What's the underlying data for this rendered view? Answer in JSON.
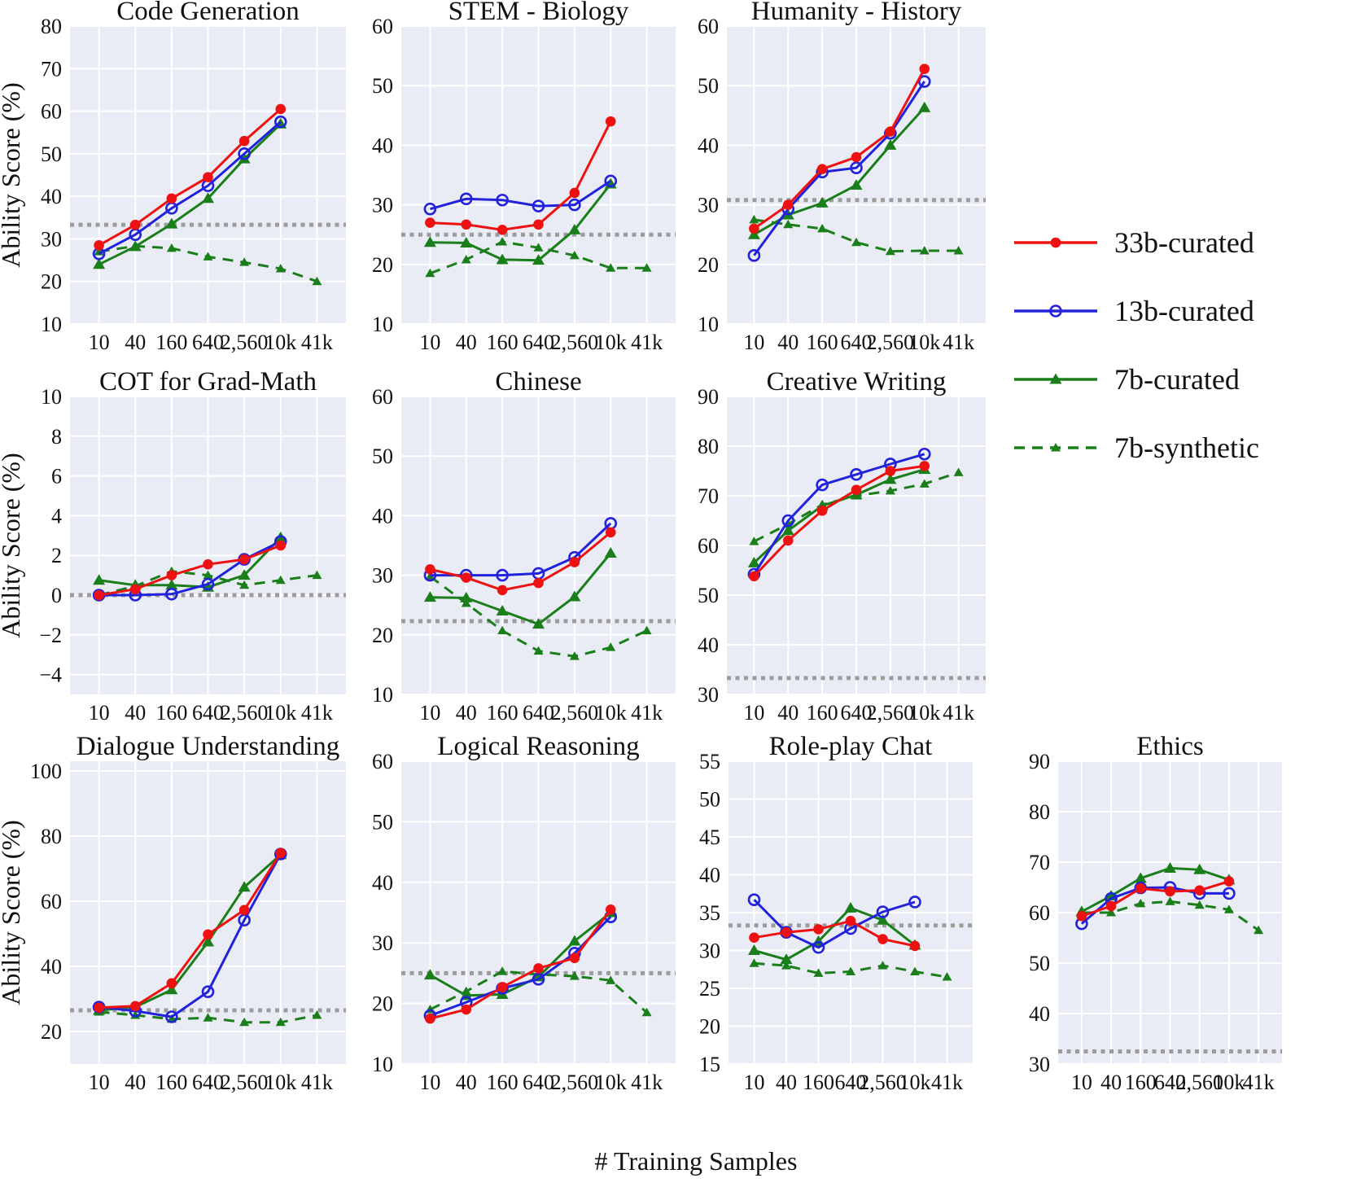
{
  "page": {
    "xlabel": "# Training Samples",
    "ylabel": "Ability Score (%)"
  },
  "theme": {
    "plot_bg": "#e9ecf4",
    "grid": "#ffffff",
    "baseline": "#9c9c9c",
    "red": "#ee1111",
    "blue": "#2222dd",
    "green": "#1a7f1a"
  },
  "legend": {
    "items": [
      {
        "label": "33b-curated",
        "color": "#ee1111",
        "marker": "circle-filled",
        "dash": "solid"
      },
      {
        "label": "13b-curated",
        "color": "#2222dd",
        "marker": "circle-open",
        "dash": "solid"
      },
      {
        "label": "7b-curated",
        "color": "#1a7f1a",
        "marker": "triangle-filled",
        "dash": "solid"
      },
      {
        "label": "7b-synthetic",
        "color": "#1a7f1a",
        "marker": "triangle-filled",
        "dash": "dashed"
      }
    ]
  },
  "chart_data": [
    {
      "type": "line",
      "title": "Code Generation",
      "categories": [
        "10",
        "40",
        "160",
        "640",
        "2,560",
        "10k",
        "41k"
      ],
      "ylim": [
        10,
        80
      ],
      "yticks": [
        10,
        20,
        30,
        40,
        50,
        60,
        70,
        80
      ],
      "baseline": 33.3,
      "series": [
        {
          "name": "33b-curated",
          "values": [
            28.5,
            33.3,
            39.5,
            44.5,
            53,
            60.5,
            null
          ]
        },
        {
          "name": "13b-curated",
          "values": [
            26.5,
            31,
            37.2,
            42.5,
            50,
            57.5,
            null
          ]
        },
        {
          "name": "7b-curated",
          "values": [
            24,
            28.2,
            33.5,
            39.5,
            48.8,
            57,
            null
          ]
        },
        {
          "name": "7b-synthetic",
          "values": [
            27,
            28.3,
            27.8,
            25.8,
            24.5,
            23,
            20
          ]
        }
      ]
    },
    {
      "type": "line",
      "title": "STEM - Biology",
      "categories": [
        "10",
        "40",
        "160",
        "640",
        "2,560",
        "10k",
        "41k"
      ],
      "ylim": [
        10,
        60
      ],
      "yticks": [
        10,
        20,
        30,
        40,
        50,
        60
      ],
      "baseline": 25,
      "series": [
        {
          "name": "33b-curated",
          "values": [
            27,
            26.7,
            25.8,
            26.7,
            32,
            44,
            null
          ]
        },
        {
          "name": "13b-curated",
          "values": [
            29.3,
            31,
            30.8,
            29.8,
            30,
            34,
            null
          ]
        },
        {
          "name": "7b-curated",
          "values": [
            23.7,
            23.6,
            20.8,
            20.7,
            25.8,
            33.5,
            null
          ]
        },
        {
          "name": "7b-synthetic",
          "values": [
            18.5,
            20.8,
            23.8,
            22.8,
            21.5,
            19.4,
            19.4
          ]
        }
      ]
    },
    {
      "type": "line",
      "title": "Humanity - History",
      "categories": [
        "10",
        "40",
        "160",
        "640",
        "2,560",
        "10k",
        "41k"
      ],
      "ylim": [
        10,
        60
      ],
      "yticks": [
        10,
        20,
        30,
        40,
        50,
        60
      ],
      "baseline": 30.8,
      "series": [
        {
          "name": "33b-curated",
          "values": [
            26,
            30,
            36,
            38,
            42.3,
            52.8,
            null
          ]
        },
        {
          "name": "13b-curated",
          "values": [
            21.5,
            29.3,
            35.5,
            36.2,
            42,
            50.7,
            null
          ]
        },
        {
          "name": "7b-curated",
          "values": [
            25,
            28.3,
            30.3,
            33.3,
            40,
            46.3,
            null
          ]
        },
        {
          "name": "7b-synthetic",
          "values": [
            27.5,
            26.7,
            26,
            23.7,
            22.2,
            22.3,
            22.3
          ]
        }
      ]
    },
    {
      "type": "line",
      "title": "COT for Grad-Math",
      "categories": [
        "10",
        "40",
        "160",
        "640",
        "2,560",
        "10k",
        "41k"
      ],
      "ylim": [
        -5,
        10
      ],
      "yticks": [
        -4,
        -2,
        0,
        2,
        4,
        6,
        8,
        10
      ],
      "baseline": 0,
      "series": [
        {
          "name": "33b-curated",
          "values": [
            0,
            0.3,
            1.0,
            1.55,
            1.8,
            2.5,
            null
          ]
        },
        {
          "name": "13b-curated",
          "values": [
            0,
            0,
            0.05,
            0.55,
            1.8,
            2.7,
            null
          ]
        },
        {
          "name": "7b-curated",
          "values": [
            0.75,
            0.5,
            0.5,
            0.4,
            1.0,
            2.9,
            null
          ]
        },
        {
          "name": "7b-synthetic",
          "values": [
            0,
            0.45,
            1.2,
            1.0,
            0.5,
            0.75,
            1.0
          ]
        }
      ]
    },
    {
      "type": "line",
      "title": "Chinese",
      "categories": [
        "10",
        "40",
        "160",
        "640",
        "2,560",
        "10k",
        "41k"
      ],
      "ylim": [
        10,
        60
      ],
      "yticks": [
        10,
        20,
        30,
        40,
        50,
        60
      ],
      "baseline": 22.3,
      "series": [
        {
          "name": "33b-curated",
          "values": [
            31,
            29.6,
            27.5,
            28.7,
            32.2,
            37.2,
            null
          ]
        },
        {
          "name": "13b-curated",
          "values": [
            30,
            30,
            30,
            30.3,
            33,
            38.7,
            null
          ]
        },
        {
          "name": "7b-curated",
          "values": [
            26.3,
            26.2,
            24,
            21.8,
            26.4,
            33.7,
            null
          ]
        },
        {
          "name": "7b-synthetic",
          "values": [
            29.8,
            25.3,
            20.7,
            17.3,
            16.4,
            17.9,
            20.7
          ]
        }
      ]
    },
    {
      "type": "line",
      "title": "Creative Writing",
      "categories": [
        "10",
        "40",
        "160",
        "640",
        "2,560",
        "10k",
        "41k"
      ],
      "ylim": [
        30,
        90
      ],
      "yticks": [
        30,
        40,
        50,
        60,
        70,
        80,
        90
      ],
      "baseline": 33.3,
      "series": [
        {
          "name": "33b-curated",
          "values": [
            53.8,
            61,
            67,
            71.2,
            75,
            76,
            null
          ]
        },
        {
          "name": "13b-curated",
          "values": [
            54.2,
            65,
            72.2,
            74.3,
            76.4,
            78.4,
            null
          ]
        },
        {
          "name": "7b-curated",
          "values": [
            56.5,
            63,
            68,
            70.2,
            73.3,
            75.3,
            null
          ]
        },
        {
          "name": "7b-synthetic",
          "values": [
            60.8,
            64.3,
            68.2,
            70,
            71,
            72.4,
            74.7
          ]
        }
      ]
    },
    {
      "type": "line",
      "title": "Dialogue Understanding",
      "categories": [
        "10",
        "40",
        "160",
        "640",
        "2,560",
        "10k",
        "41k"
      ],
      "ylim": [
        10,
        103
      ],
      "yticks": [
        20,
        40,
        60,
        80,
        100
      ],
      "baseline": 26.5,
      "series": [
        {
          "name": "33b-curated",
          "values": [
            27.3,
            27.8,
            34.8,
            49.8,
            57.3,
            74.8,
            null
          ]
        },
        {
          "name": "13b-curated",
          "values": [
            27.5,
            26.3,
            24.5,
            32.2,
            54.2,
            74.5,
            null
          ]
        },
        {
          "name": "7b-curated",
          "values": [
            26.5,
            27.5,
            32.8,
            47.5,
            64.3,
            74.3,
            null
          ]
        },
        {
          "name": "7b-synthetic",
          "values": [
            26,
            25,
            23.8,
            24.2,
            22.8,
            22.8,
            25
          ]
        }
      ]
    },
    {
      "type": "line",
      "title": "Logical Reasoning",
      "categories": [
        "10",
        "40",
        "160",
        "640",
        "2,560",
        "10k",
        "41k"
      ],
      "ylim": [
        10,
        60
      ],
      "yticks": [
        10,
        20,
        30,
        40,
        50,
        60
      ],
      "baseline": 25,
      "series": [
        {
          "name": "33b-curated",
          "values": [
            17.5,
            19,
            22.7,
            25.8,
            27.5,
            35.5,
            null
          ]
        },
        {
          "name": "13b-curated",
          "values": [
            18,
            20.2,
            22.5,
            24,
            28.3,
            34.3,
            null
          ]
        },
        {
          "name": "7b-curated",
          "values": [
            24.7,
            21.3,
            21.5,
            24.4,
            30.3,
            35,
            null
          ]
        },
        {
          "name": "7b-synthetic",
          "values": [
            19,
            22,
            25.3,
            24.8,
            24.5,
            23.8,
            18.5
          ]
        }
      ]
    },
    {
      "type": "line",
      "title": "Role-play Chat",
      "categories": [
        "10",
        "40",
        "160",
        "640",
        "2,560",
        "10k",
        "41k"
      ],
      "ylim": [
        15,
        55
      ],
      "yticks": [
        15,
        20,
        25,
        30,
        35,
        40,
        45,
        50,
        55
      ],
      "baseline": 33.3,
      "series": [
        {
          "name": "33b-curated",
          "values": [
            31.7,
            32.4,
            32.8,
            33.9,
            31.5,
            30.6,
            null
          ]
        },
        {
          "name": "13b-curated",
          "values": [
            36.7,
            32.4,
            30.4,
            32.9,
            35.1,
            36.4,
            null
          ]
        },
        {
          "name": "7b-curated",
          "values": [
            30,
            28.8,
            31.2,
            35.6,
            34,
            30.7,
            null
          ]
        },
        {
          "name": "7b-synthetic",
          "values": [
            28.3,
            28,
            27,
            27.2,
            28,
            27.2,
            26.5
          ]
        }
      ]
    },
    {
      "type": "line",
      "title": "Ethics",
      "categories": [
        "10",
        "40",
        "160",
        "640",
        "2,560",
        "10k",
        "41k"
      ],
      "ylim": [
        30,
        90
      ],
      "yticks": [
        30,
        40,
        50,
        60,
        70,
        80,
        90
      ],
      "baseline": 32.5,
      "series": [
        {
          "name": "33b-curated",
          "values": [
            59.3,
            61.3,
            64.8,
            64.2,
            64.4,
            66.2,
            null
          ]
        },
        {
          "name": "13b-curated",
          "values": [
            57.8,
            62.8,
            64.9,
            65,
            63.8,
            63.8,
            null
          ]
        },
        {
          "name": "7b-curated",
          "values": [
            60.2,
            63.3,
            66.8,
            68.8,
            68.5,
            66.5,
            null
          ]
        },
        {
          "name": "7b-synthetic",
          "values": [
            60,
            60,
            61.8,
            62.2,
            61.5,
            60.6,
            56.5
          ]
        }
      ]
    }
  ]
}
